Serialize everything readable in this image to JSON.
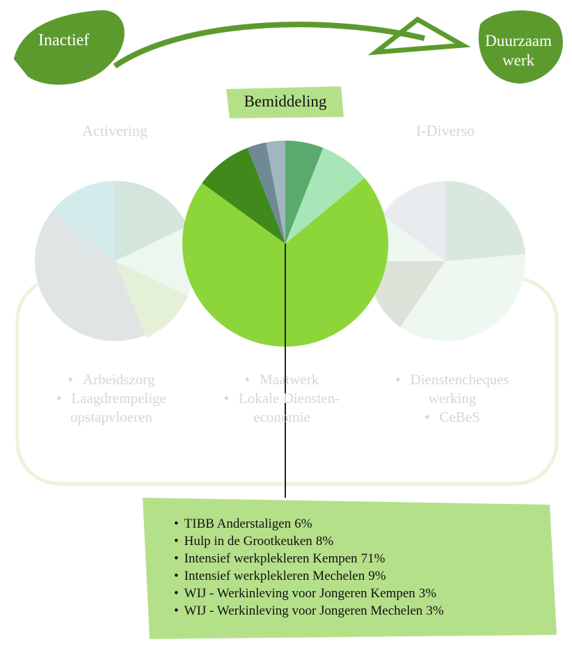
{
  "header": {
    "start": "Inactief",
    "end": [
      "Duurzaam",
      "werk"
    ]
  },
  "columns": [
    {
      "title": "Activering",
      "items": [
        "Arbeidszorg",
        "Laagdrempelige opstapvloeren"
      ]
    },
    {
      "title": "Bemiddeling",
      "items": [
        "Maatwerk",
        "Lokale Diensten-economie"
      ]
    },
    {
      "title": "I-Diverso",
      "items": [
        "Dienstencheques werking",
        "CeBeS"
      ]
    }
  ],
  "chart_data": {
    "type": "pie",
    "categories": [
      "TIBB Anderstaligen",
      "Hulp in de Grootkeuken",
      "Intensief werkplekleren Kempen",
      "Intensief werkplekleren Mechelen",
      "WIJ - Werkinleving voor Jongeren Kempen",
      "WIJ - Werkinleving voor Jongeren Mechelen"
    ],
    "values": [
      6,
      8,
      71,
      9,
      3,
      3
    ],
    "value_labels": [
      "6%",
      "8%",
      "71%",
      "9%",
      "3%",
      "3%"
    ],
    "colors": [
      "#5aaa6e",
      "#a8e6b8",
      "#8cd63a",
      "#3f8a1a",
      "#6f8a94",
      "#9fb7bd"
    ]
  }
}
